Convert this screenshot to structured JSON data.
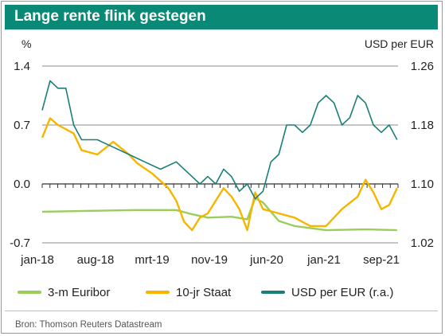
{
  "title": "Lange rente flink gestegen",
  "source": "Bron: Thomson Reuters Datastream",
  "colors": {
    "brand": "#0a8a76",
    "euribor": "#9acd5a",
    "staat": "#f7b500",
    "usd": "#1a7f77"
  },
  "chart_data": {
    "type": "line",
    "left_axis_unit": "%",
    "right_axis_unit": "USD per EUR",
    "left_ticks": [
      "1.4",
      "0.7",
      "0.0",
      "-0.7"
    ],
    "right_ticks": [
      "1.26",
      "1.18",
      "1.10",
      "1.02"
    ],
    "x_labels": [
      "jan-18",
      "aug-18",
      "mrt-19",
      "nov-19",
      "jun-20",
      "jan-21",
      "sep-21"
    ],
    "ylim_left": [
      -0.7,
      1.4
    ],
    "ylim_right": [
      1.02,
      1.26
    ],
    "grid": true,
    "legend_position": "bottom",
    "series": [
      {
        "name": "3-m Euribor",
        "axis": "left",
        "x": [
          "2018-01",
          "2018-07",
          "2019-01",
          "2019-03",
          "2019-06",
          "2019-08",
          "2019-10",
          "2020-01",
          "2020-03",
          "2020-04",
          "2020-05",
          "2020-07",
          "2020-09",
          "2021-01",
          "2021-06",
          "2021-10"
        ],
        "y": [
          -0.33,
          -0.32,
          -0.31,
          -0.31,
          -0.31,
          -0.36,
          -0.4,
          -0.39,
          -0.42,
          -0.17,
          -0.22,
          -0.44,
          -0.5,
          -0.55,
          -0.54,
          -0.55
        ]
      },
      {
        "name": "10-jr Staat",
        "axis": "left",
        "x": [
          "2018-01",
          "2018-02",
          "2018-03",
          "2018-05",
          "2018-06",
          "2018-08",
          "2018-10",
          "2018-12",
          "2019-01",
          "2019-03",
          "2019-05",
          "2019-06",
          "2019-07",
          "2019-08",
          "2019-09",
          "2019-10",
          "2019-11",
          "2019-12",
          "2020-01",
          "2020-02",
          "2020-03",
          "2020-04",
          "2020-05",
          "2020-07",
          "2020-09",
          "2020-11",
          "2021-01",
          "2021-03",
          "2021-05",
          "2021-06",
          "2021-07",
          "2021-08",
          "2021-09",
          "2021-10"
        ],
        "y": [
          0.55,
          0.78,
          0.7,
          0.6,
          0.4,
          0.35,
          0.5,
          0.35,
          0.25,
          0.12,
          -0.05,
          -0.2,
          -0.45,
          -0.55,
          -0.4,
          -0.35,
          -0.2,
          -0.05,
          -0.15,
          -0.3,
          -0.55,
          -0.1,
          -0.3,
          -0.35,
          -0.4,
          -0.5,
          -0.5,
          -0.3,
          -0.15,
          0.05,
          -0.1,
          -0.3,
          -0.25,
          -0.05
        ]
      },
      {
        "name": "USD per EUR (r.a.)",
        "axis": "right",
        "x": [
          "2018-01",
          "2018-02",
          "2018-03",
          "2018-04",
          "2018-05",
          "2018-06",
          "2018-08",
          "2018-10",
          "2018-12",
          "2019-02",
          "2019-04",
          "2019-06",
          "2019-08",
          "2019-09",
          "2019-10",
          "2019-11",
          "2019-12",
          "2020-01",
          "2020-02",
          "2020-03",
          "2020-04",
          "2020-05",
          "2020-06",
          "2020-07",
          "2020-08",
          "2020-09",
          "2020-10",
          "2020-11",
          "2020-12",
          "2021-01",
          "2021-02",
          "2021-03",
          "2021-04",
          "2021-05",
          "2021-06",
          "2021-07",
          "2021-08",
          "2021-09",
          "2021-10"
        ],
        "y": [
          1.2,
          1.24,
          1.23,
          1.23,
          1.18,
          1.16,
          1.16,
          1.15,
          1.14,
          1.13,
          1.12,
          1.13,
          1.11,
          1.1,
          1.11,
          1.1,
          1.12,
          1.11,
          1.09,
          1.1,
          1.08,
          1.09,
          1.13,
          1.14,
          1.18,
          1.18,
          1.17,
          1.18,
          1.21,
          1.22,
          1.21,
          1.18,
          1.19,
          1.22,
          1.21,
          1.18,
          1.17,
          1.18,
          1.16
        ]
      }
    ]
  }
}
